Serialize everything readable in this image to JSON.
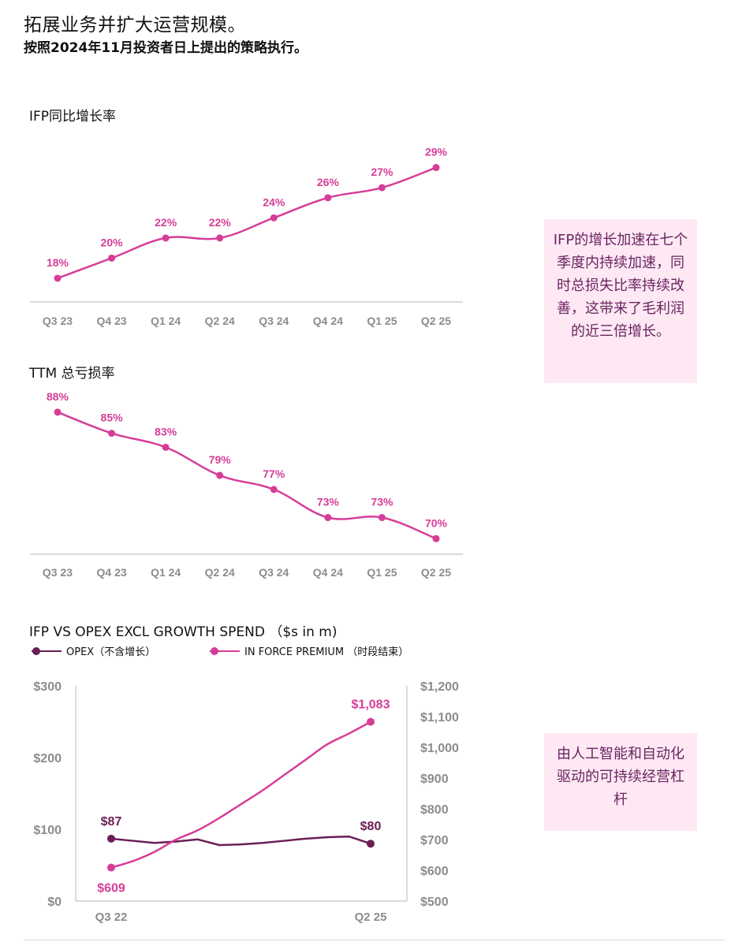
{
  "page": {
    "title": "拓展业务并扩大运营规模。",
    "subtitle": "按照2024年11月投资者日上提出的策略执行。"
  },
  "colors": {
    "pink": "#d63d98",
    "purple": "#6b1d55",
    "axis_text": "#8c8c8c",
    "callout_bg": "#fde8f4",
    "callout_text": "#6a2560"
  },
  "callouts": [
    {
      "text": "IFP的增长加速在七个季度内持续加速，同时总损失比率持续改善，这带来了毛利润的近三倍增长。"
    },
    {
      "text": "由人工智能和自动化驱动的可持续经营杠杆"
    }
  ],
  "chart_data": [
    {
      "type": "line",
      "title": "IFP同比增长率",
      "categories": [
        "Q3 23",
        "Q4 23",
        "Q1 24",
        "Q2 24",
        "Q3 24",
        "Q4 24",
        "Q1 25",
        "Q2 25"
      ],
      "series": [
        {
          "values": [
            18,
            20,
            22,
            22,
            24,
            26,
            27,
            29
          ],
          "labels": [
            "18%",
            "20%",
            "22%",
            "22%",
            "24%",
            "26%",
            "27%",
            "29%"
          ],
          "color": "#d63d98"
        }
      ],
      "ylim": [
        14,
        31
      ],
      "grid": false
    },
    {
      "type": "line",
      "title": "TTM 总亏损率",
      "categories": [
        "Q3 23",
        "Q4 23",
        "Q1 24",
        "Q2 24",
        "Q3 24",
        "Q4 24",
        "Q1 25",
        "Q2 25"
      ],
      "series": [
        {
          "values": [
            88,
            85,
            83,
            79,
            77,
            73,
            73,
            70
          ],
          "labels": [
            "88%",
            "85%",
            "83%",
            "79%",
            "77%",
            "73%",
            "73%",
            "70%"
          ],
          "color": "#d63d98"
        }
      ],
      "ylim": [
        67,
        90
      ],
      "grid": false
    },
    {
      "type": "line",
      "title": "IFP VS OPEX EXCL GROWTH SPEND （$s in m)",
      "x_tick_labels": [
        "Q3 22",
        "Q2 25"
      ],
      "x_range": [
        0,
        12
      ],
      "left_axis": {
        "ticks": [
          "$0",
          "$100",
          "$200",
          "$300"
        ],
        "ylim": [
          0,
          300
        ]
      },
      "right_axis": {
        "ticks": [
          "$500",
          "$600",
          "$700",
          "$800",
          "$900",
          "$1,000",
          "$1,100",
          "$1,200"
        ],
        "ylim": [
          500,
          1200
        ]
      },
      "series": [
        {
          "name": "OPEX（不含增长）",
          "axis": "left",
          "color": "#6b1d55",
          "x": [
            0,
            1,
            2,
            3,
            4,
            5,
            6,
            7,
            8,
            9,
            10,
            11,
            12
          ],
          "values": [
            87,
            84,
            81,
            83,
            86,
            78,
            79,
            81,
            84,
            87,
            89,
            90,
            80
          ],
          "end_labels": [
            "$87",
            "$80"
          ]
        },
        {
          "name": "IN FORCE PREMIUM （时段结束）",
          "axis": "right",
          "color": "#d63d98",
          "x": [
            0,
            1,
            2,
            3,
            4,
            5,
            6,
            7,
            8,
            9,
            10,
            11,
            12
          ],
          "values": [
            609,
            630,
            660,
            700,
            730,
            770,
            815,
            860,
            910,
            960,
            1010,
            1045,
            1083
          ],
          "end_labels": [
            "$609",
            "$1,083"
          ]
        }
      ]
    }
  ]
}
